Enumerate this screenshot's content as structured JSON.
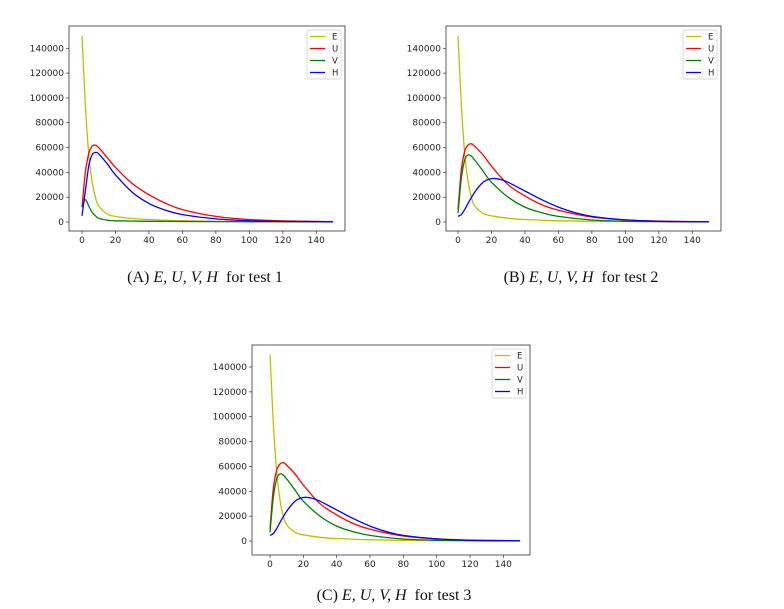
{
  "figures": [
    {
      "caption": {
        "label": "(A)",
        "vars": [
          "E,",
          "U,",
          "V,",
          "H"
        ],
        "text": "for test 1"
      },
      "chart_data": {
        "type": "line",
        "xlim": [
          0,
          150
        ],
        "ylim": [
          0,
          150000
        ],
        "xticks": [
          0,
          20,
          40,
          60,
          80,
          100,
          120,
          140
        ],
        "yticks": [
          0,
          20000,
          40000,
          60000,
          80000,
          100000,
          120000,
          140000
        ],
        "legend": "top-right",
        "grid": false,
        "series": [
          {
            "name": "E",
            "color": "#bfbf00",
            "x": [
              0,
              2,
              4,
              6,
              8,
              10,
              15,
              20,
              30,
              40,
              60,
              80,
              100,
              150
            ],
            "y": [
              150000,
              95000,
              55000,
              33000,
              20000,
              13000,
              6500,
              4500,
              2800,
              2000,
              1000,
              600,
              300,
              100
            ]
          },
          {
            "name": "U",
            "color": "#ff0000",
            "x": [
              0,
              2,
              4,
              6,
              8,
              10,
              15,
              20,
              30,
              40,
              50,
              60,
              80,
              100,
              120,
              150
            ],
            "y": [
              12000,
              40000,
              55000,
              61000,
              62000,
              60000,
              52000,
              44000,
              31000,
              22000,
              15000,
              10000,
              4500,
              2000,
              900,
              300
            ]
          },
          {
            "name": "V",
            "color": "#008000",
            "x": [
              0,
              2,
              4,
              6,
              8,
              10,
              15,
              20,
              40,
              80,
              150
            ],
            "y": [
              12000,
              18000,
              13000,
              8000,
              5000,
              3000,
              1500,
              1000,
              600,
              300,
              100
            ]
          },
          {
            "name": "H",
            "color": "#0000ff",
            "x": [
              0,
              2,
              4,
              6,
              8,
              10,
              15,
              20,
              30,
              40,
              50,
              60,
              80,
              100,
              120,
              150
            ],
            "y": [
              5000,
              25000,
              45000,
              54000,
              56000,
              55000,
              47000,
              38000,
              24000,
              15000,
              9500,
              6000,
              2500,
              1000,
              500,
              200
            ]
          }
        ]
      }
    },
    {
      "caption": {
        "label": "(B)",
        "vars": [
          "E,",
          "U,",
          "V,",
          "H"
        ],
        "text": "for test 2"
      },
      "chart_data": {
        "type": "line",
        "xlim": [
          0,
          150
        ],
        "ylim": [
          0,
          150000
        ],
        "xticks": [
          0,
          20,
          40,
          60,
          80,
          100,
          120,
          140
        ],
        "yticks": [
          0,
          20000,
          40000,
          60000,
          80000,
          100000,
          120000,
          140000
        ],
        "legend": "top-right",
        "grid": false,
        "series": [
          {
            "name": "E",
            "color": "#bfbf00",
            "x": [
              0,
              2,
              4,
              6,
              8,
              10,
              15,
              20,
              30,
              40,
              60,
              80,
              100,
              150
            ],
            "y": [
              150000,
              95000,
              55000,
              33000,
              20000,
              13000,
              7000,
              5000,
              3000,
              2000,
              1000,
              600,
              300,
              100
            ]
          },
          {
            "name": "U",
            "color": "#ff0000",
            "x": [
              0,
              2,
              4,
              6,
              8,
              10,
              15,
              20,
              30,
              40,
              50,
              60,
              80,
              100,
              120,
              150
            ],
            "y": [
              10000,
              42000,
              57000,
              62000,
              63000,
              61000,
              54000,
              45000,
              30000,
              21000,
              14000,
              9500,
              4000,
              1700,
              700,
              200
            ]
          },
          {
            "name": "V",
            "color": "#008000",
            "x": [
              0,
              2,
              4,
              6,
              8,
              10,
              15,
              20,
              30,
              40,
              50,
              60,
              80,
              100,
              150
            ],
            "y": [
              7000,
              35000,
              50000,
              54000,
              53000,
              50000,
              41000,
              32000,
              20000,
              12000,
              7500,
              4500,
              1600,
              600,
              100
            ]
          },
          {
            "name": "H",
            "color": "#0000ff",
            "x": [
              0,
              2,
              4,
              6,
              10,
              15,
              20,
              25,
              30,
              40,
              50,
              60,
              70,
              80,
              100,
              120,
              150
            ],
            "y": [
              4500,
              6000,
              10000,
              15000,
              24000,
              32000,
              35000,
              34500,
              32000,
              25000,
              18000,
              12000,
              7500,
              4500,
              1700,
              600,
              150
            ]
          }
        ]
      }
    },
    {
      "caption": {
        "label": "(C)",
        "vars": [
          "E,",
          "U,",
          "V,",
          "H"
        ],
        "text": "for test 3"
      },
      "chart_data": {
        "type": "line",
        "xlim": [
          0,
          150
        ],
        "ylim": [
          0,
          150000
        ],
        "xticks": [
          0,
          20,
          40,
          60,
          80,
          100,
          120,
          140
        ],
        "yticks": [
          0,
          20000,
          40000,
          60000,
          80000,
          100000,
          120000,
          140000
        ],
        "legend": "top-right",
        "grid": false,
        "series": [
          {
            "name": "E",
            "color": "#bfbf00",
            "x": [
              0,
              2,
              4,
              6,
              8,
              10,
              15,
              20,
              30,
              40,
              60,
              80,
              100,
              150
            ],
            "y": [
              150000,
              95000,
              55000,
              33000,
              20000,
              13000,
              7000,
              5000,
              3000,
              2000,
              1000,
              600,
              300,
              100
            ]
          },
          {
            "name": "U",
            "color": "#ff0000",
            "x": [
              0,
              2,
              4,
              6,
              8,
              10,
              15,
              20,
              30,
              40,
              50,
              60,
              80,
              100,
              120,
              150
            ],
            "y": [
              10000,
              42000,
              57000,
              62000,
              63000,
              61000,
              54000,
              45000,
              30000,
              21000,
              14000,
              9500,
              4000,
              1700,
              700,
              200
            ]
          },
          {
            "name": "V",
            "color": "#008000",
            "x": [
              0,
              2,
              4,
              6,
              8,
              10,
              15,
              20,
              30,
              40,
              50,
              60,
              80,
              100,
              150
            ],
            "y": [
              7000,
              35000,
              50000,
              54000,
              53000,
              50000,
              41000,
              32000,
              20000,
              12000,
              7500,
              4500,
              1600,
              600,
              100
            ]
          },
          {
            "name": "H",
            "color": "#0000ff",
            "x": [
              0,
              2,
              4,
              6,
              10,
              15,
              20,
              25,
              30,
              40,
              50,
              60,
              70,
              80,
              100,
              120,
              150
            ],
            "y": [
              4500,
              6000,
              10000,
              15000,
              24000,
              32000,
              35000,
              34500,
              32000,
              25000,
              18000,
              12000,
              7500,
              4500,
              1700,
              600,
              150
            ]
          }
        ]
      }
    }
  ]
}
